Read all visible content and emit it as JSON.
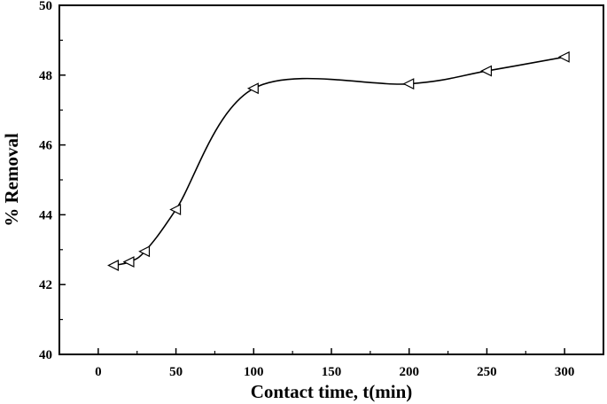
{
  "chart_data": {
    "type": "line",
    "title": "",
    "xlabel": "Contact time, t(min)",
    "ylabel": "% Removal",
    "xlim": [
      -25,
      325
    ],
    "ylim": [
      40,
      50
    ],
    "xticks": [
      0,
      50,
      100,
      150,
      200,
      250,
      300
    ],
    "yticks": [
      40,
      42,
      44,
      46,
      48,
      50
    ],
    "grid": false,
    "marker": "left-triangle-open",
    "line_style": "smooth",
    "colors": {
      "line": "#000000",
      "marker_fill": "#ffffff",
      "axis": "#000000"
    },
    "series": [
      {
        "x": [
          10,
          20,
          30,
          50,
          100,
          200,
          250,
          300
        ],
        "y": [
          42.55,
          42.65,
          42.95,
          44.15,
          47.62,
          47.75,
          48.12,
          48.52
        ]
      }
    ]
  }
}
